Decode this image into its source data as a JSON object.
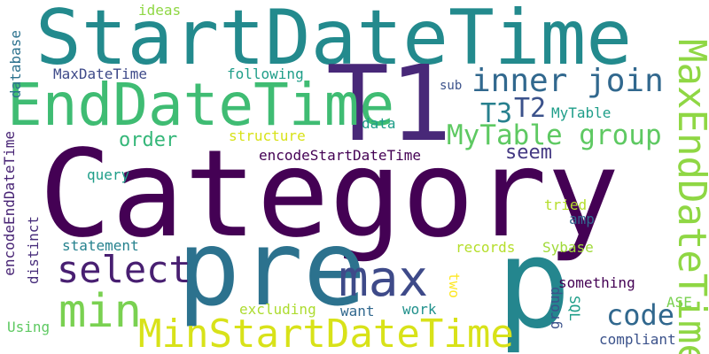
{
  "words": {
    "category": "Category",
    "start_date_time": "StartDateTime",
    "pre": "pre",
    "p": "p",
    "t1": "T1",
    "end_date_time": "EndDateTime",
    "min_start_date_time": "MinStartDateTime",
    "max_end_date_time": "MaxEndDateTime",
    "max": "max",
    "select": "select",
    "min": "min",
    "mytable_group": "MyTable group",
    "inner_join": "inner join",
    "code": "code",
    "t3": "T3",
    "t2": "T2",
    "order": "order",
    "seem": "seem",
    "encode_start_date_time": "encodeStartDateTime",
    "encode_end_date_time": "encodeEndDateTime",
    "maxdatetime": "MaxDateTime",
    "following": "following",
    "ideas": "ideas",
    "database": "database",
    "sub": "sub",
    "mytable": "MyTable",
    "data": "data",
    "structure": "structure",
    "query": "query",
    "distinct": "distinct",
    "tried": "tried",
    "amp": "amp",
    "statement": "statement",
    "records": "records",
    "sybase": "Sybase",
    "two": "two",
    "something": "something",
    "group": "group",
    "excluding": "excluding",
    "want": "want",
    "work": "work",
    "sql": "SQL",
    "ase": "ASE",
    "using": "Using",
    "compliant": "compliant"
  },
  "palette": {
    "dark_purple": "#440154",
    "purple": "#472d7b",
    "blue": "#3b528b",
    "teal_blue": "#2c728e",
    "teal": "#21918c",
    "green_teal": "#28ae80",
    "green": "#5ec962",
    "lime": "#addc30",
    "yellow": "#d9e021"
  }
}
